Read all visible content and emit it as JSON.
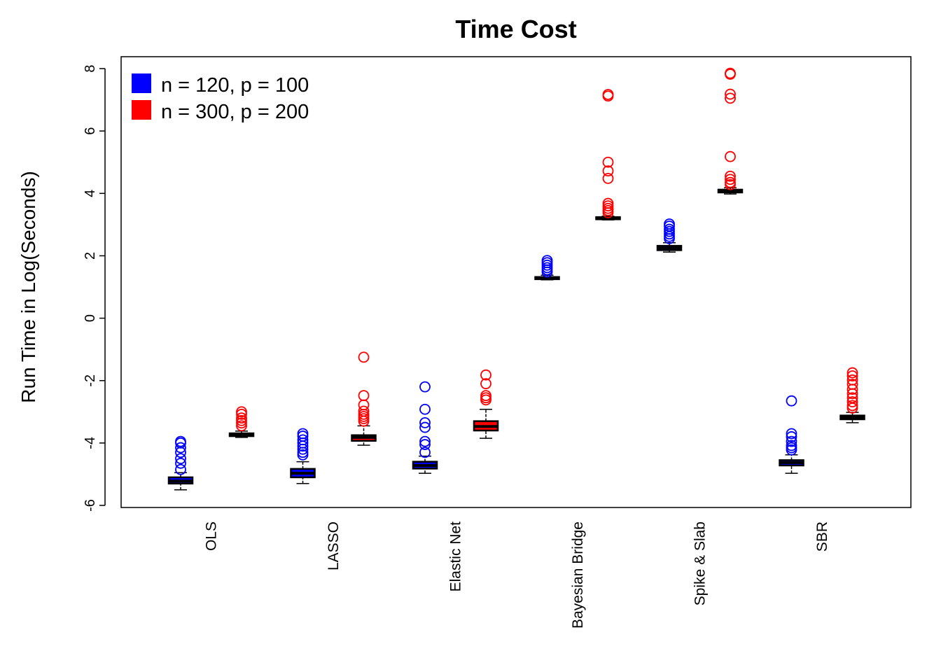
{
  "chart_data": {
    "type": "box",
    "title": "Time Cost",
    "xlabel": "",
    "ylabel": "Run Time in Log(Seconds)",
    "ylim": [
      -6,
      8
    ],
    "yticks": [
      -6,
      -4,
      -2,
      0,
      2,
      4,
      6,
      8
    ],
    "grid": false,
    "legend_position": "top-left",
    "categories": [
      "OLS",
      "LASSO",
      "Elastic Net",
      "Bayesian Bridge",
      "Spike & Slab",
      "SBR"
    ],
    "series": [
      {
        "name": "n = 120, p = 100",
        "color": "#0000ff",
        "boxes": [
          {
            "whisker_low": -5.5,
            "q1": -5.3,
            "median": -5.22,
            "q3": -5.1,
            "whisker_high": -4.95,
            "outliers": [
              -3.95,
              -4.0,
              -4.15,
              -4.3,
              -4.5,
              -4.65,
              -4.85
            ]
          },
          {
            "whisker_low": -5.3,
            "q1": -5.1,
            "median": -4.97,
            "q3": -4.83,
            "whisker_high": -4.6,
            "outliers": [
              -3.7,
              -3.78,
              -3.9,
              -4.0,
              -4.1,
              -4.2,
              -4.3,
              -4.38
            ]
          },
          {
            "whisker_low": -4.97,
            "q1": -4.82,
            "median": -4.72,
            "q3": -4.6,
            "whisker_high": -4.42,
            "outliers": [
              -2.2,
              -2.92,
              -3.35,
              -3.5,
              -3.95,
              -4.05,
              -4.3
            ]
          },
          {
            "whisker_low": 1.23,
            "q1": 1.25,
            "median": 1.28,
            "q3": 1.32,
            "whisker_high": 1.38,
            "outliers": [
              1.48,
              1.55,
              1.62,
              1.7,
              1.78,
              1.85
            ]
          },
          {
            "whisker_low": 2.12,
            "q1": 2.18,
            "median": 2.25,
            "q3": 2.32,
            "whisker_high": 2.42,
            "outliers": [
              2.55,
              2.62,
              2.7,
              2.78,
              2.85,
              2.95,
              3.02
            ]
          },
          {
            "whisker_low": -4.97,
            "q1": -4.72,
            "median": -4.63,
            "q3": -4.55,
            "whisker_high": -4.38,
            "outliers": [
              -2.65,
              -3.7,
              -3.8,
              -3.95,
              -4.08,
              -4.15,
              -4.22
            ]
          }
        ]
      },
      {
        "name": "n = 300, p = 200",
        "color": "#ff0000",
        "boxes": [
          {
            "whisker_low": -3.82,
            "q1": -3.78,
            "median": -3.74,
            "q3": -3.69,
            "whisker_high": -3.62,
            "outliers": [
              -3.0,
              -3.08,
              -3.2,
              -3.28,
              -3.36,
              -3.45
            ]
          },
          {
            "whisker_low": -4.07,
            "q1": -3.93,
            "median": -3.82,
            "q3": -3.75,
            "whisker_high": -3.45,
            "outliers": [
              -1.25,
              -2.48,
              -2.78,
              -2.98,
              -3.08,
              -3.15,
              -3.22,
              -3.3
            ]
          },
          {
            "whisker_low": -3.85,
            "q1": -3.6,
            "median": -3.47,
            "q3": -3.3,
            "whisker_high": -2.92,
            "outliers": [
              -1.82,
              -2.1,
              -2.48,
              -2.55,
              -2.62
            ]
          },
          {
            "whisker_low": 3.15,
            "q1": 3.17,
            "median": 3.2,
            "q3": 3.24,
            "whisker_high": 3.27,
            "outliers": [
              3.38,
              3.45,
              3.52,
              3.6,
              3.68,
              4.48,
              4.72,
              5.0,
              7.12,
              7.17
            ]
          },
          {
            "whisker_low": 3.98,
            "q1": 4.03,
            "median": 4.07,
            "q3": 4.12,
            "whisker_high": 4.18,
            "outliers": [
              4.28,
              4.35,
              4.45,
              4.55,
              5.18,
              7.05,
              7.18,
              7.82,
              7.85
            ]
          },
          {
            "whisker_low": -3.35,
            "q1": -3.24,
            "median": -3.18,
            "q3": -3.12,
            "whisker_high": -3.02,
            "outliers": [
              -1.75,
              -1.85,
              -1.98,
              -2.12,
              -2.28,
              -2.42,
              -2.55,
              -2.68,
              -2.8,
              -2.88
            ]
          }
        ]
      }
    ]
  }
}
